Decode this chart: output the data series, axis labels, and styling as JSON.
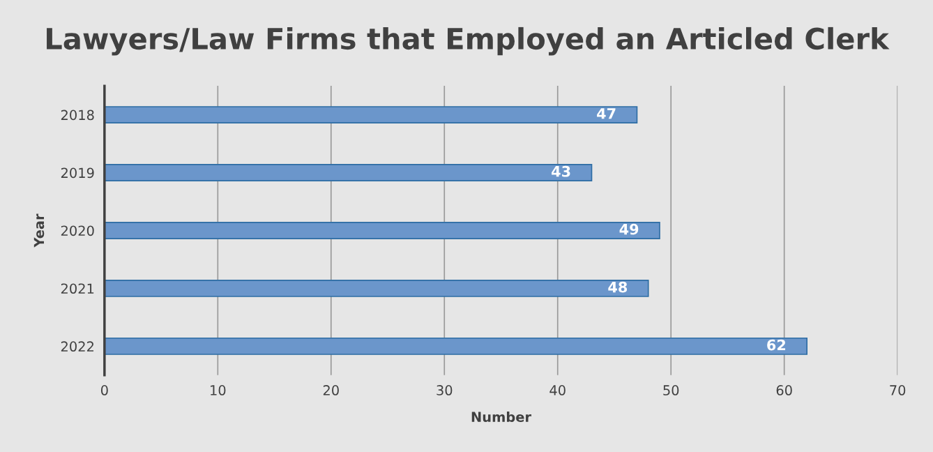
{
  "chart_data": {
    "type": "bar",
    "orientation": "horizontal",
    "title": "Lawyers/Law Firms that Employed an Articled Clerk",
    "xlabel": "Number",
    "ylabel": "Year",
    "categories": [
      "2018",
      "2019",
      "2020",
      "2021",
      "2022"
    ],
    "values": [
      47,
      43,
      49,
      48,
      62
    ],
    "color": "#6b96cb",
    "xlim": [
      0,
      70
    ],
    "xticks": [
      0,
      10,
      20,
      30,
      40,
      50,
      60,
      70
    ],
    "grid": "x",
    "data_labels": true
  }
}
